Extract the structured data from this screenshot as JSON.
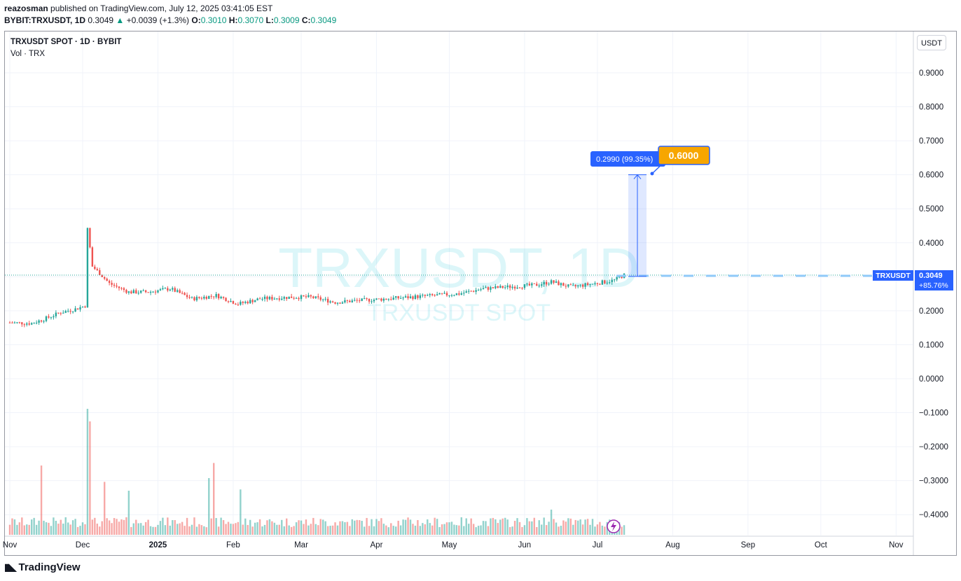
{
  "header": {
    "author": "reazosman",
    "published_text": "published on TradingView.com, July 12, 2025 03:41:05 EST",
    "symbol": "BYBIT:TRXUSDT, 1D",
    "last": "0.3049",
    "change": "+0.0039 (+1.3%)",
    "o_label": "O:",
    "o_value": "0.3010",
    "h_label": "H:",
    "h_value": "0.3070",
    "l_label": "L:",
    "l_value": "0.3009",
    "c_label": "C:",
    "c_value": "0.3049"
  },
  "legend": {
    "main": "TRXUSDT SPOT · 1D · BYBIT",
    "volume": "Vol · TRX"
  },
  "unit_button": "USDT",
  "watermark": {
    "big": "TRXUSDT, 1D",
    "small": "TRXUSDT SPOT"
  },
  "price_tag": {
    "symbol": "TRXUSDT",
    "price": "0.3049",
    "pct": "+85.76%"
  },
  "measure": {
    "label": "0.2990 (99.35%)",
    "target": "0.6000"
  },
  "footer": {
    "brand": "TradingView"
  },
  "colors": {
    "up": "#26a69a",
    "down": "#ef5350",
    "accent": "#2962ff",
    "target": "#f7a600"
  },
  "chart_data": {
    "type": "candlestick",
    "y_ticks": [
      "0.9000",
      "0.8000",
      "0.7000",
      "0.6000",
      "0.5000",
      "0.4000",
      "0.3000",
      "0.2000",
      "0.1000",
      "0.0000",
      "−0.1000",
      "−0.2000",
      "−0.3000",
      "−0.4000"
    ],
    "y_tick_values": [
      0.9,
      0.8,
      0.7,
      0.6,
      0.5,
      0.4,
      0.3,
      0.2,
      0.1,
      0.0,
      -0.1,
      -0.2,
      -0.3,
      -0.4
    ],
    "ylim": [
      -0.45,
      0.97
    ],
    "x_ticks": [
      "Nov",
      "Dec",
      "2025",
      "Feb",
      "Mar",
      "Apr",
      "May",
      "Jun",
      "Jul",
      "Aug",
      "Sep",
      "Oct",
      "Nov"
    ],
    "x_tick_dates": [
      "2024-11-01",
      "2024-12-01",
      "2025-01-01",
      "2025-02-01",
      "2025-03-01",
      "2025-04-01",
      "2025-05-01",
      "2025-06-01",
      "2025-07-01",
      "2025-08-01",
      "2025-09-01",
      "2025-10-01",
      "2025-11-01"
    ],
    "price_path": [
      [
        "2024-11-01",
        0.165
      ],
      [
        "2024-11-10",
        0.163
      ],
      [
        "2024-11-15",
        0.175
      ],
      [
        "2024-11-22",
        0.195
      ],
      [
        "2024-11-28",
        0.205
      ],
      [
        "2024-12-02",
        0.215
      ],
      [
        "2024-12-03",
        0.44
      ],
      [
        "2024-12-05",
        0.33
      ],
      [
        "2024-12-08",
        0.31
      ],
      [
        "2024-12-12",
        0.28
      ],
      [
        "2024-12-20",
        0.255
      ],
      [
        "2024-12-28",
        0.255
      ],
      [
        "2025-01-06",
        0.265
      ],
      [
        "2025-01-15",
        0.235
      ],
      [
        "2025-01-25",
        0.245
      ],
      [
        "2025-02-03",
        0.22
      ],
      [
        "2025-02-12",
        0.235
      ],
      [
        "2025-02-25",
        0.24
      ],
      [
        "2025-03-05",
        0.24
      ],
      [
        "2025-03-15",
        0.225
      ],
      [
        "2025-03-25",
        0.23
      ],
      [
        "2025-04-05",
        0.235
      ],
      [
        "2025-04-15",
        0.24
      ],
      [
        "2025-04-25",
        0.245
      ],
      [
        "2025-05-05",
        0.25
      ],
      [
        "2025-05-15",
        0.265
      ],
      [
        "2025-05-25",
        0.27
      ],
      [
        "2025-06-05",
        0.275
      ],
      [
        "2025-06-12",
        0.285
      ],
      [
        "2025-06-20",
        0.27
      ],
      [
        "2025-06-30",
        0.28
      ],
      [
        "2025-07-08",
        0.29
      ],
      [
        "2025-07-12",
        0.3049
      ]
    ],
    "volume_bars": 260,
    "volume_spikes": [
      [
        "2024-11-14",
        0.55
      ],
      [
        "2024-12-03",
        1.0
      ],
      [
        "2024-12-04",
        0.9
      ],
      [
        "2024-12-10",
        0.42
      ],
      [
        "2024-12-20",
        0.35
      ],
      [
        "2025-01-22",
        0.45
      ],
      [
        "2025-01-24",
        0.57
      ],
      [
        "2025-02-04",
        0.36
      ],
      [
        "2025-06-12",
        0.2
      ]
    ],
    "last_price": 0.3049,
    "measure_from": 0.301,
    "measure_to": 0.6,
    "measure_change": 0.299,
    "measure_pct": 99.35
  }
}
